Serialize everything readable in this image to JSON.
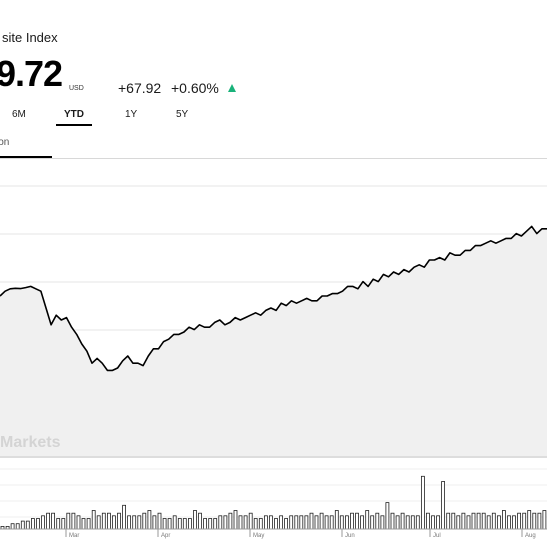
{
  "header": {
    "title": "site Index",
    "price": "9.72",
    "currency": "USD",
    "change": "+67.92",
    "change_pct": "+0.60%",
    "change_color": "#19b27a"
  },
  "range_tabs": [
    {
      "label": "6M",
      "active": false
    },
    {
      "label": "YTD",
      "active": true
    },
    {
      "label": "1Y",
      "active": false
    },
    {
      "label": "5Y",
      "active": false
    }
  ],
  "sub_tab": {
    "label": "ion"
  },
  "watermark": "Markets",
  "chart_data": {
    "type": "line",
    "x_labels": [
      "Mar",
      "Apr",
      "May",
      "Jun",
      "Jul",
      "Aug"
    ],
    "grid": true,
    "colors": {
      "line": "#000000",
      "area": "#f0f0f0",
      "volume": "#c8c8c8"
    },
    "price_series": [
      100,
      102,
      103,
      103.2,
      103.1,
      103.5,
      104,
      103,
      102,
      95,
      88,
      92,
      90,
      91,
      87,
      84,
      80,
      77,
      72,
      74,
      72,
      69,
      69,
      70,
      73,
      75,
      72,
      72,
      71,
      75,
      78,
      78,
      81,
      82,
      84,
      84,
      85,
      87,
      86,
      88,
      87,
      87,
      89,
      90,
      88,
      89,
      91,
      90,
      91,
      92,
      93,
      92,
      94,
      95,
      94,
      97,
      96,
      98,
      97,
      98,
      99,
      98,
      98,
      100,
      100,
      101,
      101,
      102,
      104,
      104,
      103,
      106,
      104,
      107,
      106,
      109,
      108,
      110,
      109,
      111,
      110,
      112,
      113,
      112,
      115,
      115,
      116,
      115,
      118,
      117,
      117,
      119,
      119,
      121,
      121,
      122,
      123,
      122,
      123,
      124,
      124,
      126,
      125,
      127,
      129,
      126,
      128,
      128
    ],
    "volume_series": [
      1,
      1,
      2,
      2,
      3,
      3,
      4,
      4,
      5,
      6,
      6,
      4,
      4,
      6,
      6,
      5,
      4,
      4,
      7,
      5,
      6,
      6,
      5,
      6,
      9,
      5,
      5,
      5,
      6,
      7,
      5,
      6,
      4,
      4,
      5,
      4,
      4,
      4,
      7,
      6,
      4,
      4,
      4,
      5,
      5,
      6,
      7,
      5,
      5,
      6,
      4,
      4,
      5,
      5,
      4,
      5,
      4,
      5,
      5,
      5,
      5,
      6,
      5,
      6,
      5,
      5,
      7,
      5,
      5,
      6,
      6,
      5,
      7,
      5,
      6,
      5,
      10,
      6,
      5,
      6,
      5,
      5,
      5,
      20,
      6,
      5,
      5,
      18,
      6,
      6,
      5,
      6,
      5,
      6,
      6,
      6,
      5,
      6,
      5,
      7,
      5,
      5,
      6,
      6,
      7,
      6,
      6,
      7
    ]
  }
}
